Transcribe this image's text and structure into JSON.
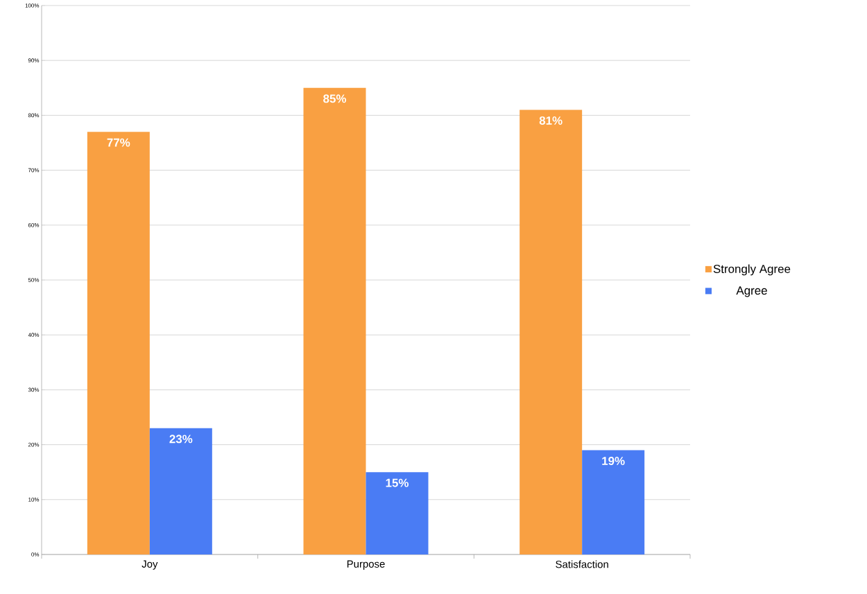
{
  "chart_data": {
    "type": "bar",
    "categories": [
      "Joy",
      "Purpose",
      "Satisfaction"
    ],
    "series": [
      {
        "name": "Strongly Agree",
        "color": "#f9a042",
        "values": [
          77,
          85,
          81
        ],
        "value_labels": [
          "77%",
          "85%",
          "81%"
        ]
      },
      {
        "name": "Agree",
        "color": "#4a7cf4",
        "values": [
          23,
          15,
          19
        ],
        "value_labels": [
          "23%",
          "15%",
          "19%"
        ]
      }
    ],
    "ylim": [
      0,
      100
    ],
    "yticks": [
      {
        "value": 0,
        "label": "0%"
      },
      {
        "value": 10,
        "label": "10%"
      },
      {
        "value": 20,
        "label": "20%"
      },
      {
        "value": 30,
        "label": "30%"
      },
      {
        "value": 40,
        "label": "40%"
      },
      {
        "value": 50,
        "label": "50%"
      },
      {
        "value": 60,
        "label": "60%"
      },
      {
        "value": 70,
        "label": "70%"
      },
      {
        "value": 80,
        "label": "80%"
      },
      {
        "value": 90,
        "label": "90%"
      },
      {
        "value": 100,
        "label": "100%"
      }
    ],
    "grid": "y",
    "legend": "right"
  }
}
